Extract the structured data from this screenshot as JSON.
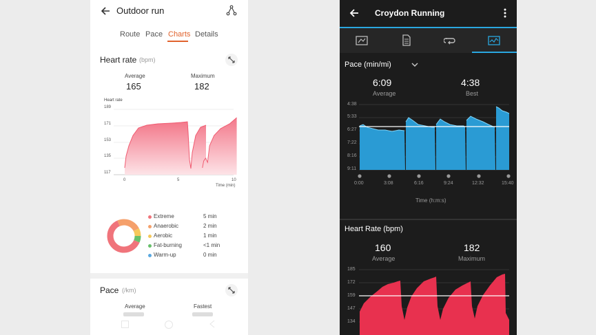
{
  "left": {
    "header": {
      "title": "Outdoor run"
    },
    "tabs": [
      {
        "label": "Route"
      },
      {
        "label": "Pace"
      },
      {
        "label": "Charts"
      },
      {
        "label": "Details"
      }
    ],
    "heart_rate": {
      "title": "Heart rate",
      "unit": "(bpm)",
      "average_label": "Average",
      "average_value": "165",
      "maximum_label": "Maximum",
      "maximum_value": "182",
      "chart_title": "Heart rate",
      "y_ticks": [
        "189",
        "171",
        "153",
        "135",
        "117"
      ],
      "x_ticks": [
        "0",
        "5",
        "10"
      ],
      "x_unit": "Time (min)"
    },
    "zones": [
      {
        "name": "Extreme",
        "value": "5 min",
        "color": "#f0747b"
      },
      {
        "name": "Anaerobic",
        "value": "2 min",
        "color": "#f5a06b"
      },
      {
        "name": "Aerobic",
        "value": "1 min",
        "color": "#f5c85a"
      },
      {
        "name": "Fat-burning",
        "value": "<1 min",
        "color": "#67c06a"
      },
      {
        "name": "Warm-up",
        "value": "0 min",
        "color": "#59a8e0"
      }
    ],
    "pace": {
      "title": "Pace",
      "unit": "(/km)",
      "average_label": "Average",
      "fastest_label": "Fastest"
    }
  },
  "right": {
    "header": {
      "title": "Croydon Running"
    },
    "pace": {
      "title": "Pace (min/mi)",
      "average_value": "6:09",
      "average_label": "Average",
      "best_value": "4:38",
      "best_label": "Best",
      "y_ticks": [
        "4:38",
        "5:33",
        "6:27",
        "7:22",
        "8:16",
        "9:11"
      ],
      "x_ticks": [
        "0:00",
        "3:08",
        "6:16",
        "9:24",
        "12:32",
        "15:40"
      ],
      "x_label": "Time (h:m:s)"
    },
    "heart_rate": {
      "title": "Heart Rate (bpm)",
      "average_value": "160",
      "average_label": "Average",
      "maximum_value": "182",
      "maximum_label": "Maximum",
      "y_ticks": [
        "185",
        "172",
        "159",
        "147",
        "134"
      ]
    },
    "colors": {
      "accent": "#2aa7e0",
      "pace_fill": "#2a9bd4",
      "hr_fill": "#e8314f"
    }
  }
}
